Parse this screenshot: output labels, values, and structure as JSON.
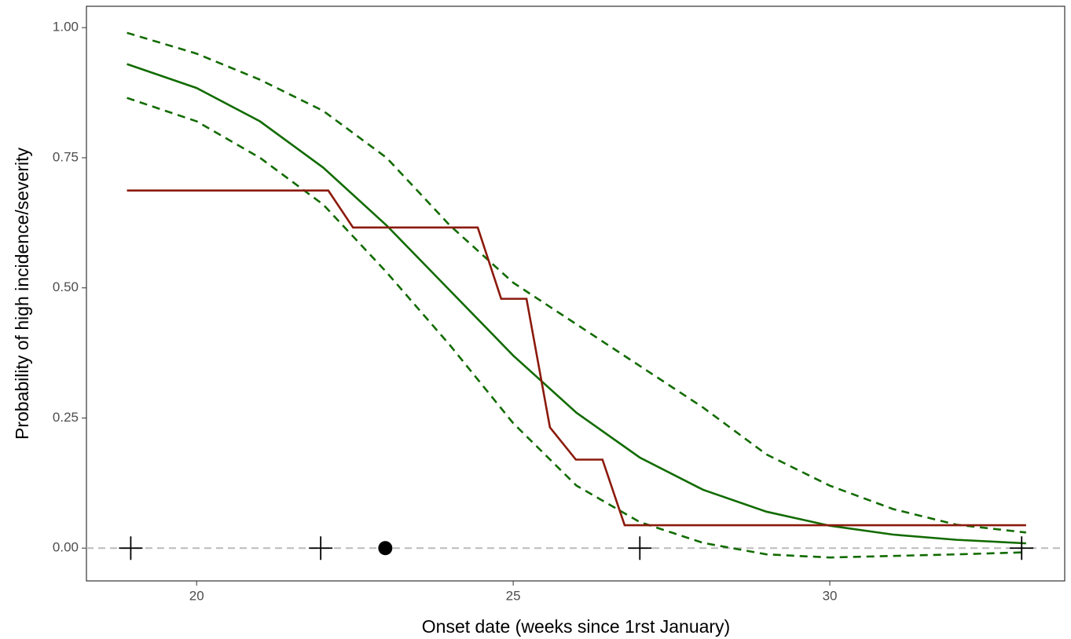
{
  "chart_data": {
    "type": "line",
    "x_label": "Onset date (weeks since 1rst January)",
    "y_label": "Probability of high incidence/severity",
    "xlim": [
      18.26,
      33.71
    ],
    "ylim": [
      -0.063,
      1.041
    ],
    "xticks": [
      20,
      25,
      30
    ],
    "yticks": [
      {
        "value": 0,
        "label": "0.00"
      },
      {
        "value": 0.25,
        "label": "0.25"
      },
      {
        "value": 0.5,
        "label": "0.50"
      },
      {
        "value": 0.75,
        "label": "0.75"
      },
      {
        "value": 1,
        "label": "1.00"
      }
    ],
    "grid": false,
    "reference_line": {
      "y": 0,
      "color": "#bbbbbb",
      "dash": true
    },
    "series": [
      {
        "color": "#126b00",
        "dash": false,
        "marker": "none",
        "x": [
          18.9,
          20,
          21,
          22,
          23,
          24,
          25,
          26,
          27,
          28,
          29,
          30,
          31,
          32,
          33.1
        ],
        "values": [
          0.93,
          0.884,
          0.82,
          0.731,
          0.62,
          0.495,
          0.37,
          0.26,
          0.174,
          0.112,
          0.07,
          0.043,
          0.026,
          0.016,
          0.0092
        ]
      },
      {
        "color": "#126b00",
        "dash": true,
        "marker": "none",
        "x": [
          18.9,
          20,
          21,
          22,
          23,
          24,
          25,
          26,
          27,
          28,
          29,
          30,
          31,
          32,
          33.1
        ],
        "values": [
          0.99,
          0.95,
          0.9,
          0.84,
          0.75,
          0.62,
          0.51,
          0.43,
          0.35,
          0.27,
          0.18,
          0.12,
          0.075,
          0.045,
          0.03
        ]
      },
      {
        "color": "#126b00",
        "dash": true,
        "marker": "none",
        "x": [
          18.9,
          20,
          21,
          22,
          23,
          24,
          25,
          26,
          27,
          28,
          29,
          30,
          31,
          32,
          33.1
        ],
        "values": [
          0.865,
          0.82,
          0.75,
          0.66,
          0.53,
          0.39,
          0.24,
          0.12,
          0.05,
          0.01,
          -0.012,
          -0.018,
          -0.015,
          -0.012,
          -0.008
        ]
      },
      {
        "color": "#8b1a0c",
        "dash": false,
        "marker": "none",
        "x": [
          18.9,
          22.08,
          22.47,
          24.44,
          24.81,
          25.21,
          25.58,
          25.99,
          26.41,
          26.76,
          33.1
        ],
        "values": [
          0.687,
          0.687,
          0.616,
          0.616,
          0.479,
          0.479,
          0.232,
          0.17,
          0.17,
          0.044,
          0.044
        ]
      },
      {
        "color": "#000000",
        "dash": false,
        "marker": "cross",
        "x": [
          18.96,
          21.96,
          27,
          33.03
        ],
        "values": [
          0,
          0,
          0,
          0
        ]
      },
      {
        "color": "#000000",
        "dash": false,
        "marker": "circle",
        "x": [
          22.98
        ],
        "values": [
          0
        ]
      }
    ]
  }
}
